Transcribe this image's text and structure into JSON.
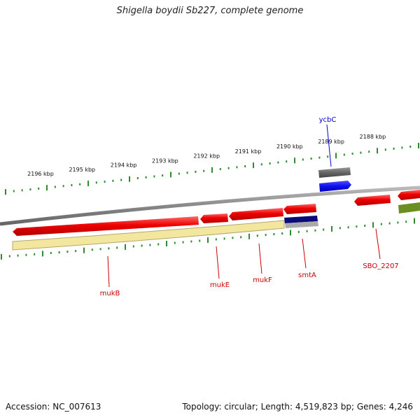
{
  "title": "Shigella boydii Sb227, complete genome",
  "footer": {
    "accession": "Accession: NC_007613",
    "topology": "Topology: circular",
    "length": "Length: 4,519,823 bp",
    "genes": "Genes: 4,246"
  },
  "ruler": {
    "ticks": [
      "2196 kbp",
      "2195 kbp",
      "2194 kbp",
      "2193 kbp",
      "2192 kbp",
      "2191 kbp",
      "2190 kbp",
      "2189 kbp",
      "2188 kbp"
    ]
  },
  "genes": [
    {
      "label": "ycbC",
      "color": "#0000cc"
    },
    {
      "label": "mukB",
      "color": "#cc0000"
    },
    {
      "label": "mukE",
      "color": "#cc0000"
    },
    {
      "label": "mukF",
      "color": "#cc0000"
    },
    {
      "label": "smtA",
      "color": "#cc0000"
    },
    {
      "label": "SBO_2207",
      "color": "#cc0000"
    }
  ],
  "colors": {
    "cds_forward": "#1010ee",
    "cds_reverse": "#ee0000",
    "backbone": "#888888",
    "gc_positive": "#6b8e23",
    "gc_negative": "#f0e68c",
    "tick": "#2e8b2e",
    "skew_negative": "#000080"
  }
}
